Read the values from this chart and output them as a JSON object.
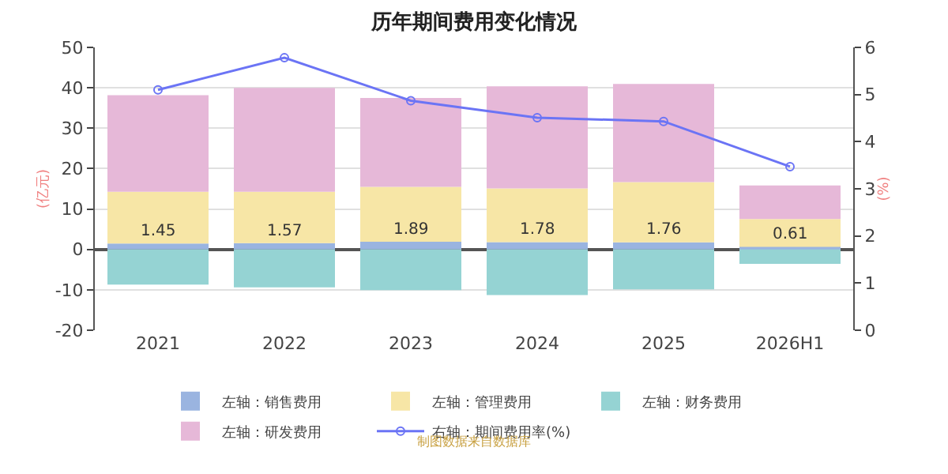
{
  "chart_data": {
    "type": "bar",
    "title": "历年期间费用变化情况",
    "ylabel": "(亿元)",
    "y2label": "(%)",
    "categories": [
      "2021",
      "2022",
      "2023",
      "2024",
      "2025",
      "2026H1"
    ],
    "stacked": true,
    "series": [
      {
        "name": "左轴：销售费用",
        "color": "#9ab4e0",
        "values": [
          1.45,
          1.57,
          1.89,
          1.78,
          1.76,
          0.61
        ],
        "value_labels": [
          "1.45",
          "1.57",
          "1.89",
          "1.78",
          "1.76",
          "0.61"
        ]
      },
      {
        "name": "左轴：管理费用",
        "color": "#f7e6a6",
        "values": [
          12.8,
          12.7,
          13.6,
          13.3,
          14.9,
          6.9
        ]
      },
      {
        "name": "左轴：财务费用",
        "color": "#95d3d3",
        "values": [
          -8.7,
          -9.4,
          -10.1,
          -11.3,
          -9.9,
          -3.6
        ]
      },
      {
        "name": "左轴：研发费用",
        "color": "#e6b8d8",
        "values": [
          23.9,
          25.7,
          22.0,
          25.3,
          24.3,
          8.3
        ]
      },
      {
        "name": "右轴：期间费用率(%)",
        "type": "line",
        "axis": "y2",
        "color": "#6b74f5",
        "values": [
          5.1,
          5.78,
          4.87,
          4.51,
          4.43,
          3.47
        ]
      }
    ],
    "ylim": [
      -20,
      50
    ],
    "yticks": [
      -20,
      -10,
      0,
      10,
      20,
      30,
      40,
      50
    ],
    "y2lim": [
      0,
      6
    ],
    "y2ticks": [
      0,
      1,
      2,
      3,
      4,
      5,
      6
    ],
    "grid": "y",
    "legend": "bottom",
    "marker": "circle",
    "annotations": [
      "制图数据来自数据库"
    ]
  }
}
